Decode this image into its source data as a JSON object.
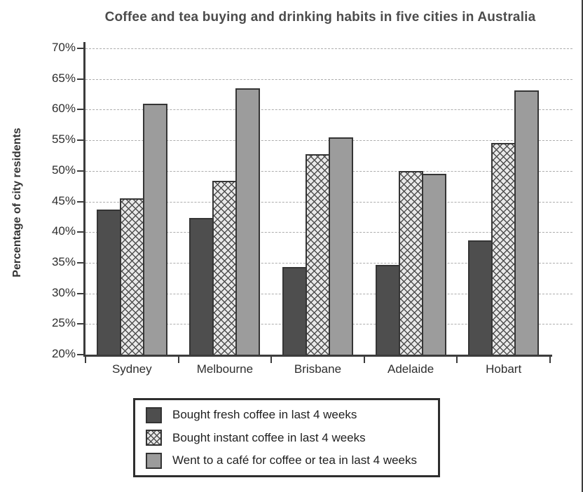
{
  "chart_data": {
    "type": "bar",
    "title": "Coffee and tea buying and drinking habits in five cities in Australia",
    "ylabel": "Percentage of city residents",
    "xlabel": "",
    "ylim": [
      20,
      70
    ],
    "ytick_step": 5,
    "ytick_labels": [
      "70%",
      "65%",
      "60%",
      "55%",
      "50%",
      "45%",
      "40%",
      "35%",
      "30%",
      "25%",
      "20%"
    ],
    "grid": "horizontal dashed gridlines at every 5%",
    "legend_position": "boxed legend below chart",
    "categories": [
      "Sydney",
      "Melbourne",
      "Brisbane",
      "Adelaide",
      "Hobart"
    ],
    "series": [
      {
        "name": "Bought fresh coffee in last 4 weeks",
        "style": "dark solid",
        "color": "#4e4e4e",
        "values": [
          43.7,
          42.3,
          34.3,
          34.6,
          38.6
        ]
      },
      {
        "name": "Bought instant coffee in last 4 weeks",
        "style": "diagonal crosshatch on light gray",
        "color": "#e9e9e9",
        "values": [
          45.5,
          48.4,
          52.7,
          50.0,
          54.5
        ]
      },
      {
        "name": "Went to a café for coffee or tea in last 4 weeks",
        "style": "medium gray solid",
        "color": "#9c9c9c",
        "values": [
          61.0,
          63.5,
          55.5,
          49.5,
          63.1
        ]
      }
    ],
    "axis_color": "#3c3c3c",
    "bar_border_color": "#353535"
  }
}
